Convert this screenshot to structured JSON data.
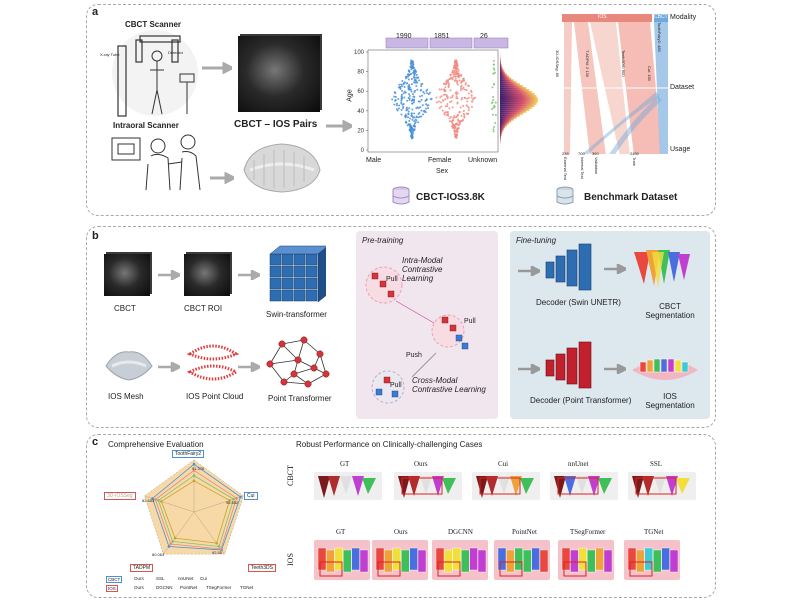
{
  "panel_a": {
    "label": "a",
    "cbct_scanner": "CBCT Scanner",
    "xray_tube": "X-ray Tube",
    "detector": "Detector",
    "intraoral_scanner": "Intraoral Scanner",
    "pairs_label": "CBCT – IOS Pairs",
    "dataset_name": "CBCT-IOS3.8K",
    "benchmark_name": "Benchmark Dataset",
    "age_chart": {
      "ylabel": "Age",
      "xlabel": "Sex",
      "yticks": [
        "0",
        "20",
        "40",
        "60",
        "80",
        "100"
      ],
      "categories": [
        "Male",
        "Female",
        "Unknown"
      ],
      "counts": [
        "1990",
        "1851",
        "26"
      ]
    },
    "sankey": {
      "top_source": "IOS",
      "top_source_2": "CBCT",
      "row_labels": [
        "Modality",
        "Dataset",
        "Usage"
      ],
      "dataset_labels": [
        "3D-IOSSeg: 80",
        "T ADPM: 2 130",
        "Teeth3DS: 900",
        "ToothFairy2: 480",
        "Cui: 150"
      ],
      "usage_counts": [
        "238",
        "700",
        "360",
        "2450"
      ],
      "usage_labels": [
        "External Test",
        "Internal Test",
        "Validation",
        "Train"
      ]
    }
  },
  "panel_b": {
    "label": "b",
    "cbct": "CBCT",
    "cbct_roi": "CBCT ROI",
    "swin": "Swin-transformer",
    "ios_mesh": "IOS Mesh",
    "ios_pc": "IOS Point Cloud",
    "point_transformer": "Point Transformer",
    "pretraining": "Pre-training",
    "intra_modal": "Intra-Modal Contrastive Learning",
    "cross_modal": "Cross-Modal Contrastive Learning",
    "pull": "Pull",
    "push": "Push",
    "finetuning": "Fine-tuning",
    "decoder_swin": "Decoder (Swin UNETR)",
    "decoder_pt": "Decoder (Point Transformer)",
    "cbct_seg": "CBCT Segmentation",
    "ios_seg": "IOS Segmentation"
  },
  "panel_c": {
    "label": "c",
    "left_title": "Comprehensive Evaluation",
    "right_title": "Robust Performance on Clinically-challenging Cases",
    "radar_axes": [
      "ToothFairy2",
      "Cui",
      "Teeth3DS",
      "TADPM",
      "3D-IOSSeg"
    ],
    "radar_values": [
      "91.376",
      "95.552",
      "92.55",
      "80.063",
      "82.653"
    ],
    "legend_cbct": [
      "CBCT",
      "Ours",
      "SSL",
      "nnUNet",
      "Cui"
    ],
    "legend_ios": [
      "IOS",
      "Ours",
      "DGCNN",
      "PointNet",
      "TSegFormer",
      "TGNet"
    ],
    "cbct_row_label": "CBCT",
    "ios_row_label": "IOS",
    "cbct_cols": [
      "GT",
      "Ours",
      "Cui",
      "nnUnet",
      "SSL"
    ],
    "ios_cols": [
      "GT",
      "Ours",
      "DGCNN",
      "PointNet",
      "TSegFormer",
      "TGNet"
    ]
  },
  "colors": {
    "male": "#4a90d9",
    "female": "#f28b82",
    "unknown": "#7cc36f",
    "ios_band": "#e8877c",
    "cbct_band": "#6fa8dc",
    "pretraining_bg": "#f2e6ee",
    "finetuning_bg": "#dde7ee",
    "radar_fill": "#f7d9a8"
  }
}
